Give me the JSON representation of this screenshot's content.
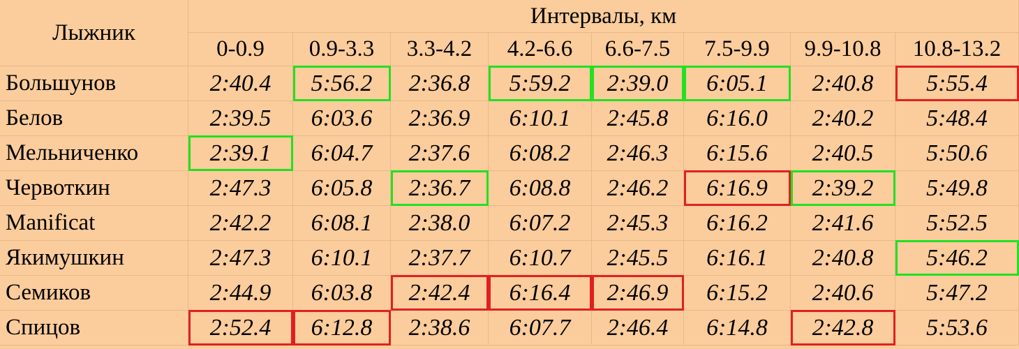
{
  "table": {
    "header": {
      "skier": "Лыжник",
      "intervals": "Интервалы, км",
      "columns": [
        "0-0.9",
        "0.9-3.3",
        "3.3-4.2",
        "4.2-6.6",
        "6.6-7.5",
        "7.5-9.9",
        "9.9-10.8",
        "10.8-13.2"
      ]
    },
    "colors": {
      "best": "#22e022",
      "worst": "#e02020",
      "background": "#fbcc9c"
    },
    "rows": [
      {
        "name": "Большунов",
        "times": [
          "2:40.4",
          "5:56.2",
          "2:36.8",
          "5:59.2",
          "2:39.0",
          "6:05.1",
          "2:40.8",
          "5:55.4"
        ],
        "best": [
          1,
          3,
          4,
          5
        ],
        "worst": [
          7
        ]
      },
      {
        "name": "Белов",
        "times": [
          "2:39.5",
          "6:03.6",
          "2:36.9",
          "6:10.1",
          "2:45.8",
          "6:16.0",
          "2:40.2",
          "5:48.4"
        ],
        "best": [],
        "worst": []
      },
      {
        "name": "Мельниченко",
        "times": [
          "2:39.1",
          "6:04.7",
          "2:37.6",
          "6:08.2",
          "2:46.3",
          "6:15.6",
          "2:40.5",
          "5:50.6"
        ],
        "best": [
          0
        ],
        "worst": []
      },
      {
        "name": "Червоткин",
        "times": [
          "2:47.3",
          "6:05.8",
          "2:36.7",
          "6:08.8",
          "2:46.2",
          "6:16.9",
          "2:39.2",
          "5:49.8"
        ],
        "best": [
          2,
          6
        ],
        "worst": [
          5
        ]
      },
      {
        "name": "Manificat",
        "times": [
          "2:42.2",
          "6:08.1",
          "2:38.0",
          "6:07.2",
          "2:45.3",
          "6:16.2",
          "2:41.6",
          "5:52.5"
        ],
        "best": [],
        "worst": []
      },
      {
        "name": "Якимушкин",
        "times": [
          "2:47.3",
          "6:10.1",
          "2:37.7",
          "6:10.7",
          "2:45.5",
          "6:16.1",
          "2:40.8",
          "5:46.2"
        ],
        "best": [
          7
        ],
        "worst": []
      },
      {
        "name": "Семиков",
        "times": [
          "2:44.9",
          "6:03.8",
          "2:42.4",
          "6:16.4",
          "2:46.9",
          "6:15.2",
          "2:40.6",
          "5:47.2"
        ],
        "best": [],
        "worst": [
          2,
          3,
          4
        ]
      },
      {
        "name": "Спицов",
        "times": [
          "2:52.4",
          "6:12.8",
          "2:38.6",
          "6:07.7",
          "2:46.4",
          "6:14.8",
          "2:42.8",
          "5:53.6"
        ],
        "best": [],
        "worst": [
          0,
          1,
          6
        ]
      }
    ]
  }
}
